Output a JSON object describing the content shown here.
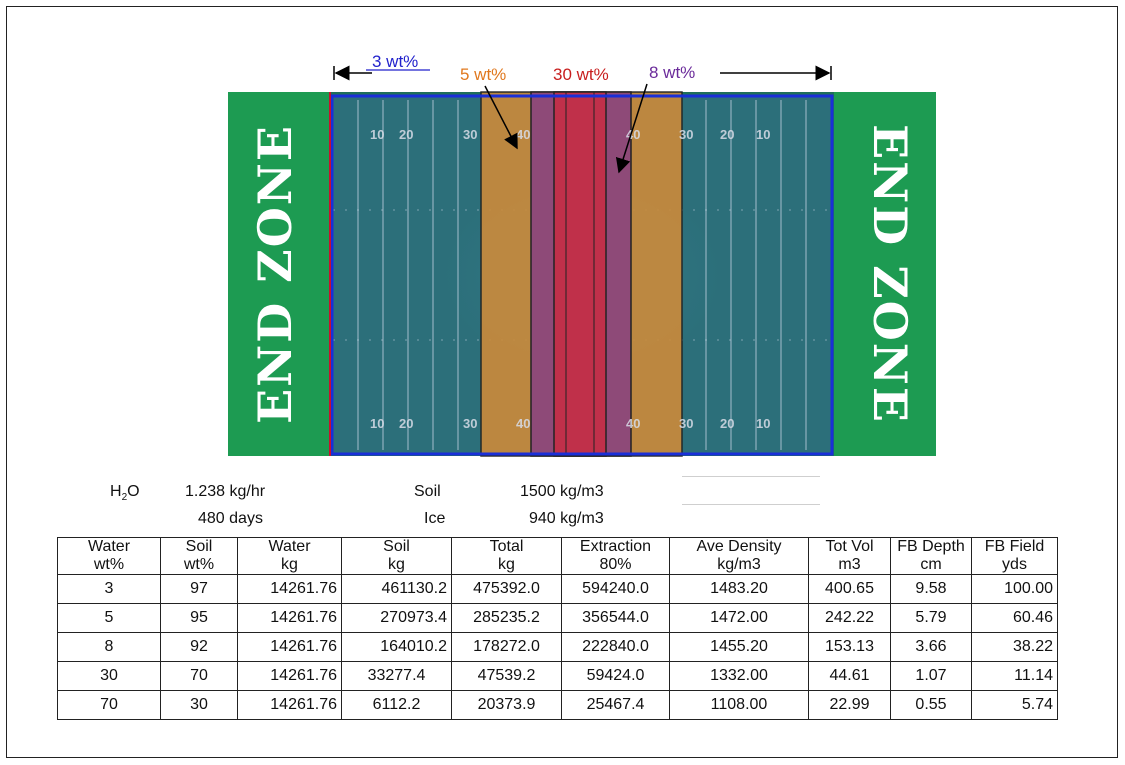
{
  "diagram": {
    "labels": {
      "wt3": "3 wt%",
      "wt5": "5 wt%",
      "wt30": "30 wt%",
      "wt8": "8 wt%"
    },
    "endzone_left": "END ZONE",
    "endzone_right": "END ZONE",
    "yard_numbers_top": [
      "10",
      "20",
      "30",
      "40",
      "",
      "40",
      "30",
      "20",
      "10"
    ],
    "yard_numbers_bottom": [
      "10",
      "20",
      "30",
      "40",
      "",
      "40",
      "30",
      "20",
      "10"
    ],
    "colors": {
      "endzone": "#1d9b52",
      "field": "#1f6f5a",
      "band_3wt": "#2c6f7a",
      "band_5wt": "#c98a3c",
      "band_8wt": "#8e4a78",
      "band_30wt": "#c0304a",
      "boundary_blue": "#1a2fd8",
      "label_blue": "#2222cc",
      "label_orange": "#e0781e",
      "label_red": "#c81e1e",
      "label_purple": "#6a2a9a"
    }
  },
  "info": {
    "h2o_label": "H",
    "h2o_sub": "2",
    "h2o_suffix": "O",
    "rate": "1.238 kg/hr",
    "days": "480 days",
    "soil_label": "Soil",
    "soil_density": "1500 kg/m3",
    "ice_label": "Ice",
    "ice_density": "940 kg/m3"
  },
  "table": {
    "headers_row1": [
      "Water",
      "Soil",
      "Water",
      "Soil",
      "Total",
      "Extraction",
      "Ave Density",
      "Tot Vol",
      "FB Depth",
      "FB Field"
    ],
    "headers_row2": [
      "wt%",
      "wt%",
      "kg",
      "kg",
      "kg",
      "80%",
      "kg/m3",
      "m3",
      "cm",
      "yds"
    ],
    "rows": [
      [
        "3",
        "97",
        "14261.76",
        "461130.2",
        "475392.0",
        "594240.0",
        "1483.20",
        "400.65",
        "9.58",
        "100.00"
      ],
      [
        "5",
        "95",
        "14261.76",
        "270973.4",
        "285235.2",
        "356544.0",
        "1472.00",
        "242.22",
        "5.79",
        "60.46"
      ],
      [
        "8",
        "92",
        "14261.76",
        "164010.2",
        "178272.0",
        "222840.0",
        "1455.20",
        "153.13",
        "3.66",
        "38.22"
      ],
      [
        "30",
        "70",
        "14261.76",
        "33277.4",
        "47539.2",
        "59424.0",
        "1332.00",
        "44.61",
        "1.07",
        "11.14"
      ],
      [
        "70",
        "30",
        "14261.76",
        "6112.2",
        "20373.9",
        "25467.4",
        "1108.00",
        "22.99",
        "0.55",
        "5.74"
      ]
    ]
  }
}
